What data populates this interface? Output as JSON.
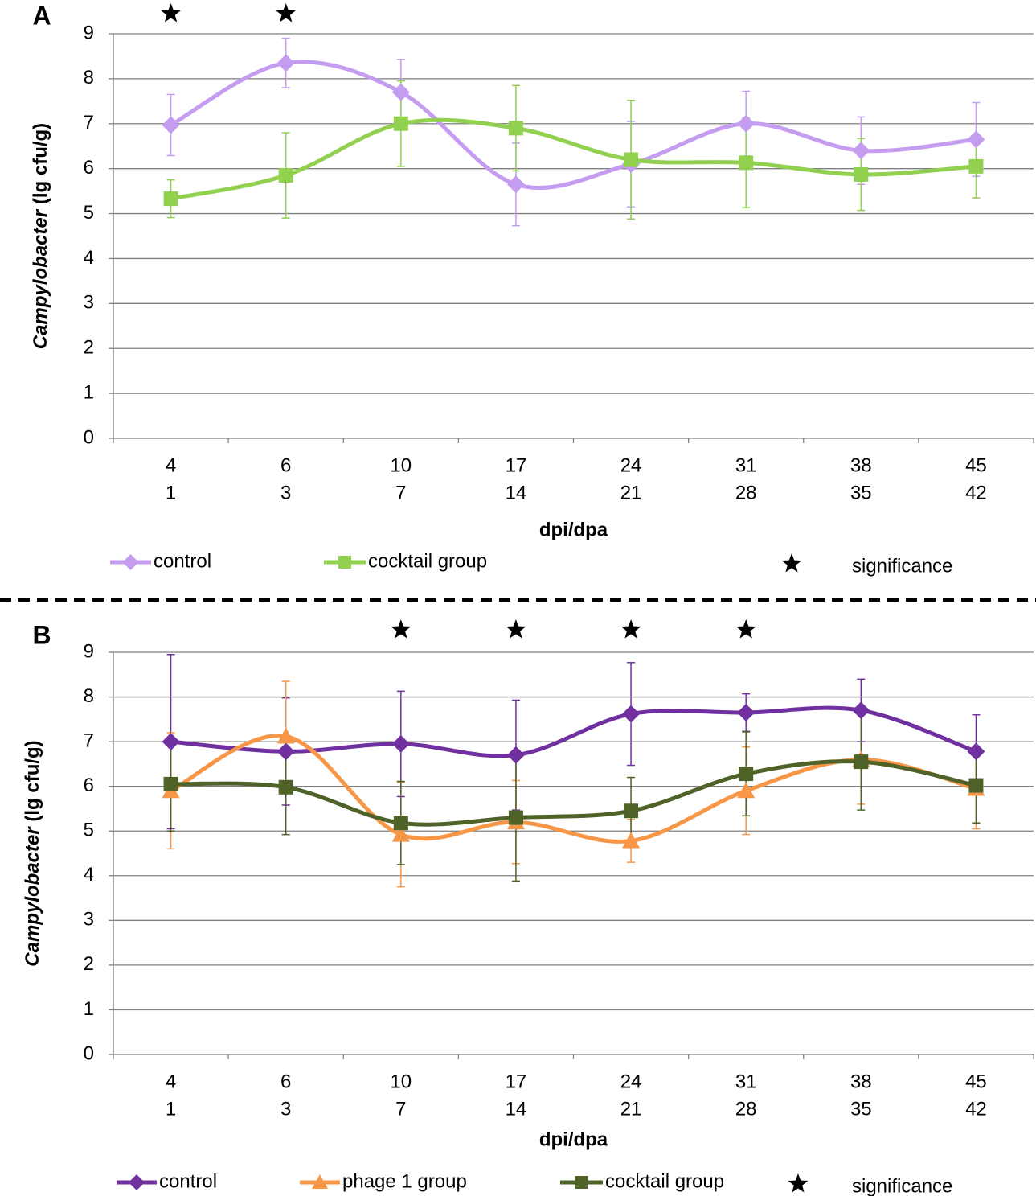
{
  "chart_data": [
    {
      "type": "line",
      "panel_label": "A",
      "ylabel": [
        "Campylobacter",
        " (lg cfu/g)"
      ],
      "xlabel": "dpi/dpa",
      "categories": [
        "4",
        "6",
        "10",
        "17",
        "24",
        "31",
        "38",
        "45"
      ],
      "categories_secondary": [
        "1",
        "3",
        "7",
        "14",
        "21",
        "28",
        "35",
        "42"
      ],
      "ylim": [
        0,
        9
      ],
      "yticks": [
        0,
        1,
        2,
        3,
        4,
        5,
        6,
        7,
        8,
        9
      ],
      "grid": true,
      "smooth": true,
      "series": [
        {
          "name": "control",
          "color": "#c49cf0",
          "marker": "diamond",
          "values": [
            6.97,
            8.35,
            7.7,
            5.65,
            6.1,
            7.0,
            6.4,
            6.65
          ],
          "errors": [
            0.68,
            0.55,
            0.73,
            0.92,
            0.95,
            0.72,
            0.75,
            0.82
          ]
        },
        {
          "name": "cocktail group",
          "color": "#92d050",
          "marker": "square",
          "values": [
            5.33,
            5.85,
            7.0,
            6.9,
            6.2,
            6.13,
            5.87,
            6.05
          ],
          "errors": [
            0.42,
            0.95,
            0.95,
            0.95,
            1.32,
            1.0,
            0.8,
            0.7
          ]
        }
      ],
      "significance": {
        "name": "significance",
        "flags": [
          true,
          true,
          false,
          false,
          false,
          false,
          false,
          false
        ]
      }
    },
    {
      "type": "line",
      "panel_label": "B",
      "ylabel": [
        "Campylobacter",
        " (lg cfu/g)"
      ],
      "xlabel": "dpi/dpa",
      "categories": [
        "4",
        "6",
        "10",
        "17",
        "24",
        "31",
        "38",
        "45"
      ],
      "categories_secondary": [
        "1",
        "3",
        "7",
        "14",
        "21",
        "28",
        "35",
        "42"
      ],
      "ylim": [
        0,
        9
      ],
      "yticks": [
        0,
        1,
        2,
        3,
        4,
        5,
        6,
        7,
        8,
        9
      ],
      "grid": true,
      "smooth": true,
      "series": [
        {
          "name": "control",
          "color": "#7030a0",
          "marker": "diamond",
          "values": [
            7.0,
            6.78,
            6.95,
            6.7,
            7.62,
            7.65,
            7.7,
            6.78
          ],
          "errors": [
            1.95,
            1.2,
            1.18,
            1.23,
            1.15,
            0.42,
            0.7,
            0.82
          ]
        },
        {
          "name": "phage 1 group",
          "color": "#f79646",
          "marker": "triangle",
          "values": [
            5.9,
            7.12,
            4.92,
            5.2,
            4.78,
            5.9,
            6.6,
            5.95
          ],
          "errors": [
            1.3,
            1.23,
            1.17,
            0.93,
            0.48,
            0.98,
            1.0,
            0.9
          ]
        },
        {
          "name": "cocktail group",
          "color": "#4f6228",
          "marker": "square",
          "values": [
            6.05,
            5.98,
            5.18,
            5.3,
            5.45,
            6.28,
            6.55,
            6.02
          ],
          "errors": [
            1.05,
            1.06,
            0.93,
            1.42,
            0.75,
            0.94,
            1.08,
            0.84
          ]
        }
      ],
      "significance": {
        "name": "significance",
        "flags": [
          false,
          false,
          true,
          true,
          true,
          true,
          false,
          false
        ]
      }
    }
  ]
}
